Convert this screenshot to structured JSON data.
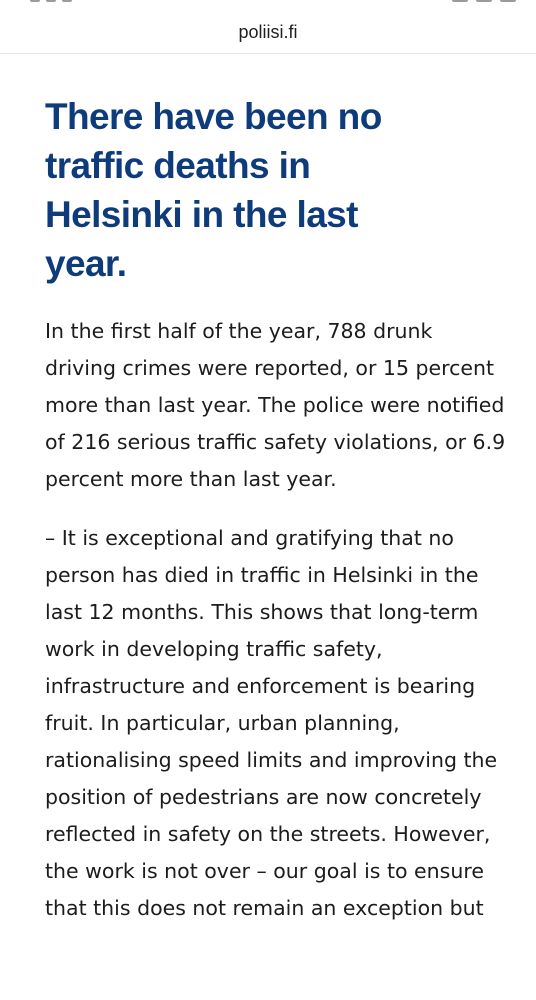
{
  "browser": {
    "url": "poliisi.fi"
  },
  "article": {
    "headline": "There have been no traffic deaths in Helsinki in the last year.",
    "paragraphs": [
      "In the first half of the year, 788 drunk driving crimes were reported, or 15 percent more than last year. The police were notified of 216 serious traffic safety violations, or 6.9 percent more than last year.",
      "– It is exceptional and gratifying that no person has died in traffic in Helsinki in the last 12 months. This shows that long-term work in developing traffic safety, infrastructure and enforcement is bearing fruit. In particular, urban planning, rationalising speed limits and improving the position of pedestrians are now concretely reflected in safety on the streets. However, the work is not over – our goal is to ensure that this does not remain an exception but"
    ]
  },
  "colors": {
    "headline": "#0d3b7c",
    "body_text": "#1c1c1c",
    "background": "#ffffff"
  }
}
